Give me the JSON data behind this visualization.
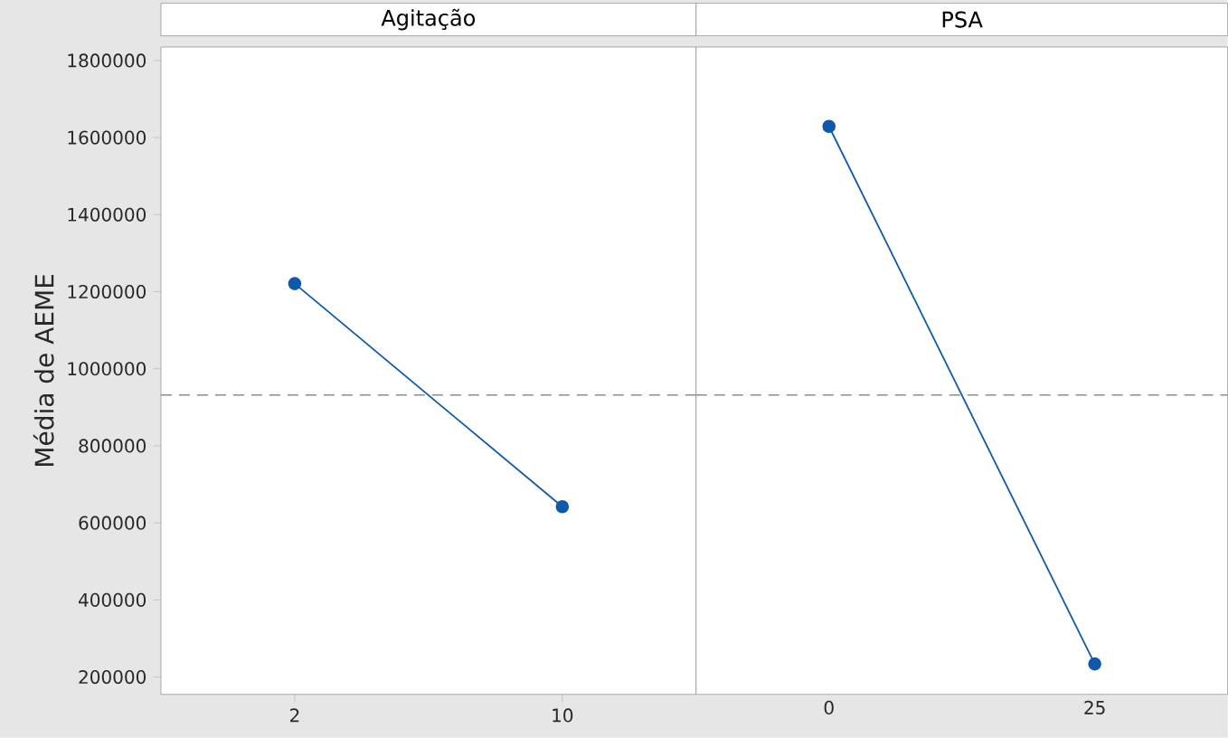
{
  "chart_data": [
    {
      "type": "line",
      "title": "Agitação",
      "ylabel": "Média de AEME",
      "categories": [
        "2",
        "10"
      ],
      "series": [
        {
          "color": "#1059aa",
          "values": [
            1221000,
            642000
          ]
        }
      ],
      "ylim": [
        155000,
        1835000
      ],
      "yticks": [
        200000,
        400000,
        600000,
        800000,
        1000000,
        1200000,
        1400000,
        1600000,
        1800000
      ],
      "ref_lines": [
        {
          "axis": "y",
          "value": 932000,
          "color": "#8c8c8c",
          "line_style": "dashed"
        }
      ],
      "marker": "circle",
      "line_style": "solid"
    },
    {
      "type": "line",
      "title": "PSA",
      "categories": [
        "0",
        "25"
      ],
      "series": [
        {
          "color": "#1059aa",
          "values": [
            1629000,
            234000
          ]
        }
      ],
      "ylim": [
        155000,
        1835000
      ],
      "yticks": [
        200000,
        400000,
        600000,
        800000,
        1000000,
        1200000,
        1400000,
        1600000,
        1800000
      ],
      "ref_lines": [
        {
          "axis": "y",
          "value": 932000,
          "color": "#8c8c8c",
          "line_style": "dashed"
        }
      ],
      "marker": "circle",
      "line_style": "solid",
      "tick_labels": "x"
    }
  ]
}
